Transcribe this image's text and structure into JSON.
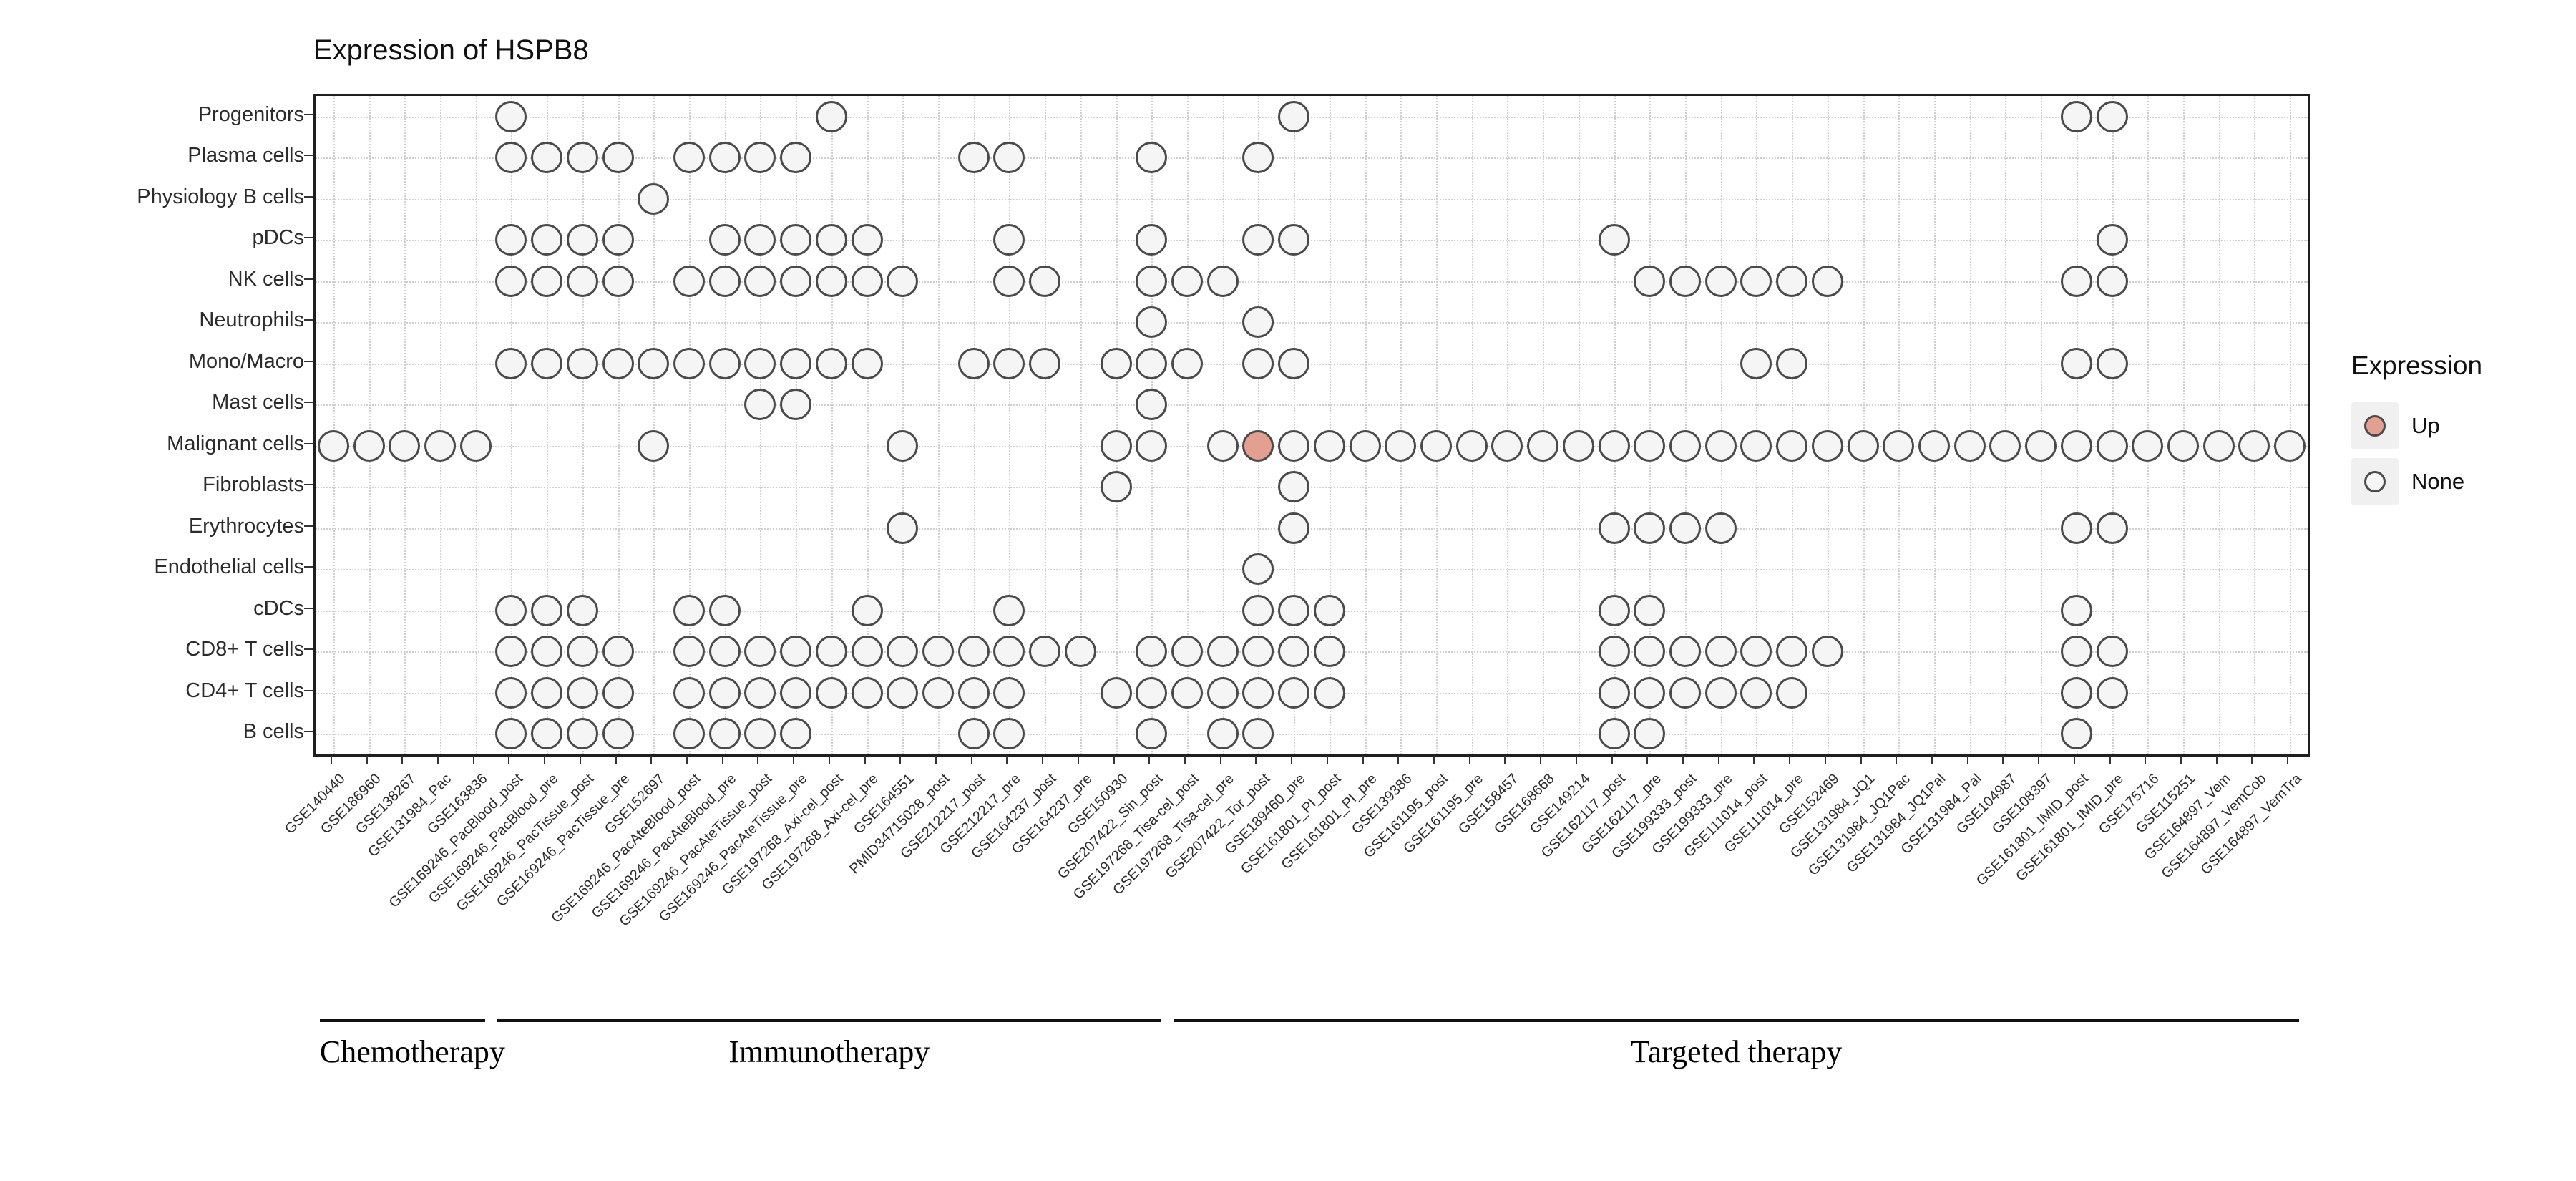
{
  "title": "Expression of HSPB8",
  "legend": {
    "title": "Expression",
    "items": [
      {
        "label": "Up",
        "fill": "#e3a090"
      },
      {
        "label": "None",
        "fill": "#f5f5f5"
      }
    ]
  },
  "colors": {
    "up_fill": "#e3a090",
    "none_fill": "#f5f5f5",
    "dot_stroke": "#4a4a4a",
    "grid": "#cfcfcf",
    "panel_border": "#1f1f1f"
  },
  "chart_data": {
    "type": "dot-matrix",
    "title": "Expression of HSPB8",
    "legend_title": "Expression",
    "legend_position": "right",
    "rows": [
      "Progenitors",
      "Plasma cells",
      "Physiology B cells",
      "pDCs",
      "NK cells",
      "Neutrophils",
      "Mono/Macro",
      "Mast cells",
      "Malignant cells",
      "Fibroblasts",
      "Erythrocytes",
      "Endothelial cells",
      "cDCs",
      "CD8+ T cells",
      "CD4+ T cells",
      "B cells"
    ],
    "columns": [
      "GSE140440",
      "GSE186960",
      "GSE138267",
      "GSE131984_Pac",
      "GSE163836",
      "GSE169246_PacBlood_post",
      "GSE169246_PacBlood_pre",
      "GSE169246_PacTissue_post",
      "GSE169246_PacTissue_pre",
      "GSE152697",
      "GSE169246_PacAteBlood_post",
      "GSE169246_PacAteBlood_pre",
      "GSE169246_PacAteTissue_post",
      "GSE169246_PacAteTissue_pre",
      "GSE197268_Axi-cel_post",
      "GSE197268_Axi-cel_pre",
      "GSE164551",
      "PMID34715028_post",
      "GSE212217_post",
      "GSE212217_pre",
      "GSE164237_post",
      "GSE164237_pre",
      "GSE150930",
      "GSE207422_Sin_post",
      "GSE197268_Tisa-cel_post",
      "GSE197268_Tisa-cel_pre",
      "GSE207422_Tor_post",
      "GSE189460_pre",
      "GSE161801_PI_post",
      "GSE161801_PI_pre",
      "GSE139386",
      "GSE161195_post",
      "GSE161195_pre",
      "GSE158457",
      "GSE168668",
      "GSE149214",
      "GSE162117_post",
      "GSE162117_pre",
      "GSE199333_post",
      "GSE199333_pre",
      "GSE111014_post",
      "GSE111014_pre",
      "GSE152469",
      "GSE131984_JQ1",
      "GSE131984_JQ1Pac",
      "GSE131984_JQ1Pal",
      "GSE131984_Pal",
      "GSE104987",
      "GSE108397",
      "GSE161801_IMID_post",
      "GSE161801_IMID_pre",
      "GSE175716",
      "GSE115251",
      "GSE164897_Vem",
      "GSE164897_VemCob",
      "GSE164897_VemTra"
    ],
    "groups": [
      {
        "label": "Chemotherapy",
        "start": 1,
        "end": 5
      },
      {
        "label": "Immunotherapy",
        "start": 6,
        "end": 24
      },
      {
        "label": "Targeted therapy",
        "start": 25,
        "end": 56
      }
    ],
    "dots": {
      "Progenitors": [
        6,
        15,
        28,
        50,
        51
      ],
      "Plasma cells": [
        6,
        7,
        8,
        9,
        11,
        12,
        13,
        14,
        19,
        20,
        24,
        27
      ],
      "Physiology B cells": [
        10
      ],
      "pDCs": [
        6,
        7,
        8,
        9,
        12,
        13,
        14,
        15,
        16,
        20,
        24,
        27,
        28,
        37,
        51
      ],
      "NK cells": [
        6,
        7,
        8,
        9,
        11,
        12,
        13,
        14,
        15,
        16,
        17,
        20,
        21,
        24,
        25,
        26,
        38,
        39,
        40,
        41,
        42,
        43,
        50,
        51
      ],
      "Neutrophils": [
        24,
        27
      ],
      "Mono/Macro": [
        6,
        7,
        8,
        9,
        10,
        11,
        12,
        13,
        14,
        15,
        16,
        19,
        20,
        21,
        23,
        24,
        25,
        27,
        28,
        41,
        42,
        50,
        51
      ],
      "Mast cells": [
        13,
        14,
        24
      ],
      "Malignant cells": [
        1,
        2,
        3,
        4,
        5,
        10,
        17,
        23,
        24,
        26,
        27,
        28,
        29,
        30,
        31,
        32,
        33,
        34,
        35,
        36,
        37,
        38,
        39,
        40,
        41,
        42,
        43,
        44,
        45,
        46,
        47,
        48,
        49,
        50,
        51,
        52,
        53,
        54,
        55,
        56
      ],
      "Fibroblasts": [
        23,
        28
      ],
      "Erythrocytes": [
        17,
        28,
        37,
        38,
        39,
        40,
        50,
        51
      ],
      "Endothelial cells": [
        27
      ],
      "cDCs": [
        6,
        7,
        8,
        11,
        12,
        16,
        20,
        27,
        28,
        29,
        37,
        38,
        50
      ],
      "CD8+ T cells": [
        6,
        7,
        8,
        9,
        11,
        12,
        13,
        14,
        15,
        16,
        17,
        18,
        19,
        20,
        21,
        22,
        24,
        25,
        26,
        27,
        28,
        29,
        37,
        38,
        39,
        40,
        41,
        42,
        43,
        50,
        51
      ],
      "CD4+ T cells": [
        6,
        7,
        8,
        9,
        11,
        12,
        13,
        14,
        15,
        16,
        17,
        18,
        19,
        20,
        23,
        24,
        25,
        26,
        27,
        28,
        29,
        37,
        38,
        39,
        40,
        41,
        42,
        50,
        51
      ],
      "B cells": [
        6,
        7,
        8,
        9,
        11,
        12,
        13,
        14,
        19,
        20,
        24,
        26,
        27,
        37,
        38,
        50
      ]
    },
    "up_cells": [
      {
        "row": "Malignant cells",
        "col": 27
      }
    ]
  }
}
